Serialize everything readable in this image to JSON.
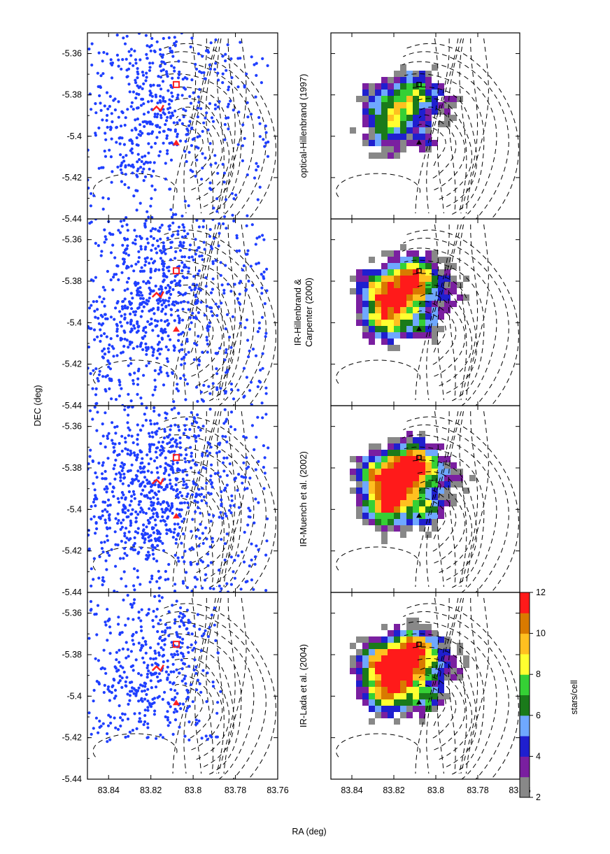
{
  "figure": {
    "x_axis_label": "RA (deg)",
    "y_axis_label": "DEC (deg)",
    "colorbar_label": "stars/cell",
    "colors": {
      "points": "#1f3fff",
      "markers": "#ff2020",
      "contours": "#000000",
      "frame": "#000000"
    }
  },
  "chart_data": {
    "type": "scatter",
    "subtype": "stellar positions (left) and density maps with contour overlay (right)",
    "xlim": [
      83.85,
      83.76
    ],
    "ylim": [
      -5.44,
      -5.35
    ],
    "x_reversed": true,
    "x_ticks": [
      83.84,
      83.82,
      83.8,
      83.78,
      83.76
    ],
    "x_tick_labels": [
      "83.84",
      "83.82",
      "83.8",
      "83.78",
      "83.76"
    ],
    "y_ticks": [
      -5.36,
      -5.38,
      -5.4,
      -5.42,
      -5.44
    ],
    "y_tick_labels": [
      "-5.36",
      "-5.38",
      "-5.4",
      "-5.42",
      "-5.44"
    ],
    "rows": [
      {
        "label_lines": [
          "optical-Hillenbrand (1997)"
        ],
        "density_scale": 0.55,
        "n_points": 560
      },
      {
        "label_lines": [
          "IR-Hillenbrand &",
          "Carpenter (2000)"
        ],
        "density_scale": 0.85,
        "n_points": 820
      },
      {
        "label_lines": [
          "IR-Muench et al. (2002)"
        ],
        "density_scale": 1.0,
        "n_points": 900
      },
      {
        "label_lines": [
          "IR-Lada et al. (2004)"
        ],
        "density_scale": 0.95,
        "n_points": 560
      }
    ],
    "markers": [
      {
        "name": "square",
        "x": 83.808,
        "y": -5.375
      },
      {
        "name": "diamond",
        "x": 83.816,
        "y": -5.387
      },
      {
        "name": "triangle",
        "x": 83.808,
        "y": -5.403
      }
    ],
    "colorbar": {
      "min": 2,
      "max": 12,
      "ticks": [
        2,
        4,
        6,
        8,
        10,
        12
      ],
      "tick_labels": [
        "2",
        "4",
        "6",
        "8",
        "10",
        "12"
      ],
      "colors": [
        "#888888",
        "#7a1fa0",
        "#1f1fcf",
        "#6fa8ff",
        "#1a7a1a",
        "#35d035",
        "#ffff30",
        "#ffc020",
        "#d97a00",
        "#ff1a1a"
      ]
    }
  }
}
